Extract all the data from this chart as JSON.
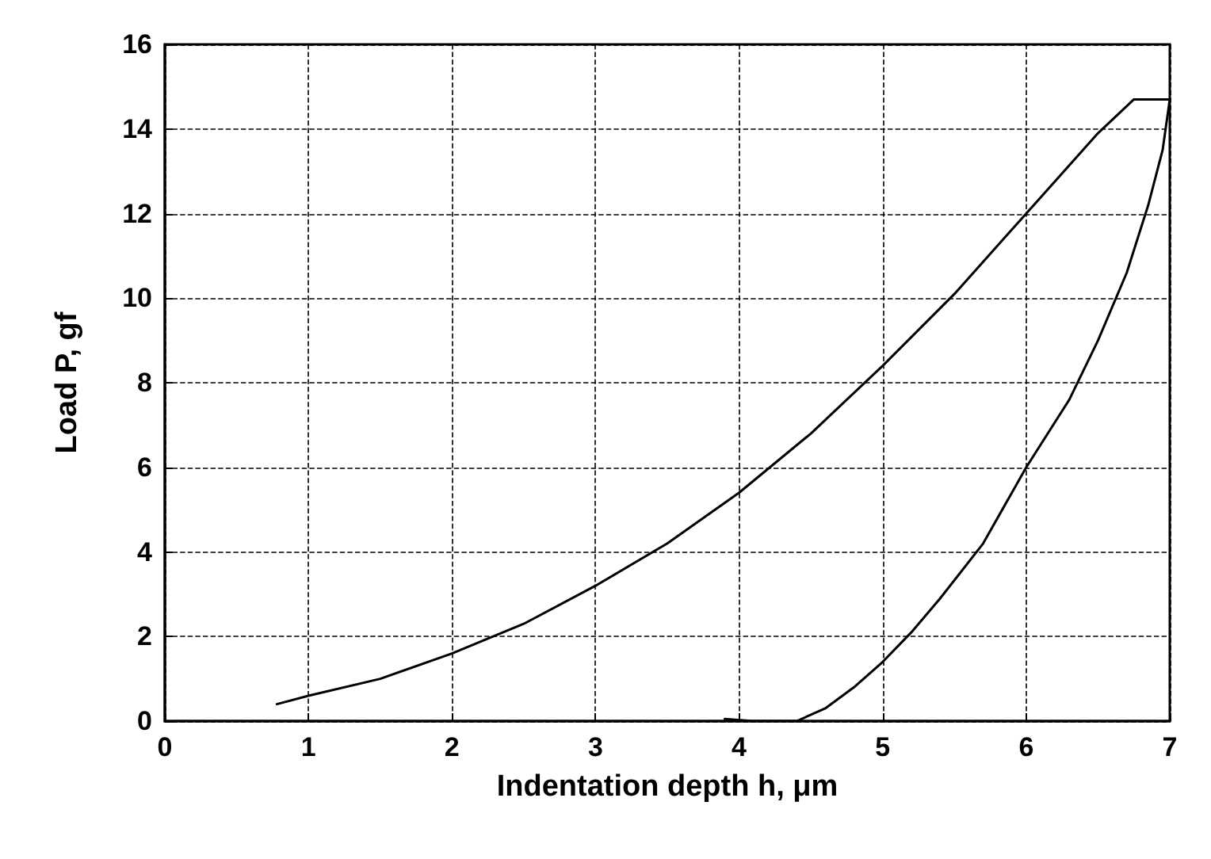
{
  "chart_data": {
    "type": "line",
    "xlabel": "Indentation depth h, μm",
    "ylabel": "Load P, gf",
    "series": [
      {
        "color": "#000000",
        "x": [
          0.78,
          1,
          1.5,
          2,
          2.5,
          3,
          3.5,
          4,
          4.5,
          5,
          5.5,
          6,
          6.5,
          6.75,
          7.0,
          6.95,
          6.85,
          6.7,
          6.5,
          6.3,
          6.0,
          5.7,
          5.4,
          5.2,
          5.0,
          4.8,
          4.6,
          4.4,
          4.1,
          3.9
        ],
        "values": [
          0.4,
          0.6,
          1.0,
          1.6,
          2.3,
          3.2,
          4.2,
          5.4,
          6.8,
          8.4,
          10.1,
          12.0,
          13.9,
          14.7,
          14.7,
          13.5,
          12.2,
          10.6,
          9.0,
          7.6,
          6.0,
          4.2,
          2.9,
          2.1,
          1.4,
          0.8,
          0.3,
          0.0,
          0.0,
          0.05
        ]
      }
    ],
    "xlim": [
      0,
      7
    ],
    "xticks": [
      0,
      1,
      2,
      3,
      4,
      5,
      6,
      7
    ],
    "ylim": [
      0,
      16
    ],
    "yticks": [
      0,
      2,
      4,
      6,
      8,
      10,
      12,
      14,
      16
    ],
    "grid": true,
    "marker": "none",
    "line_style": "solid"
  }
}
